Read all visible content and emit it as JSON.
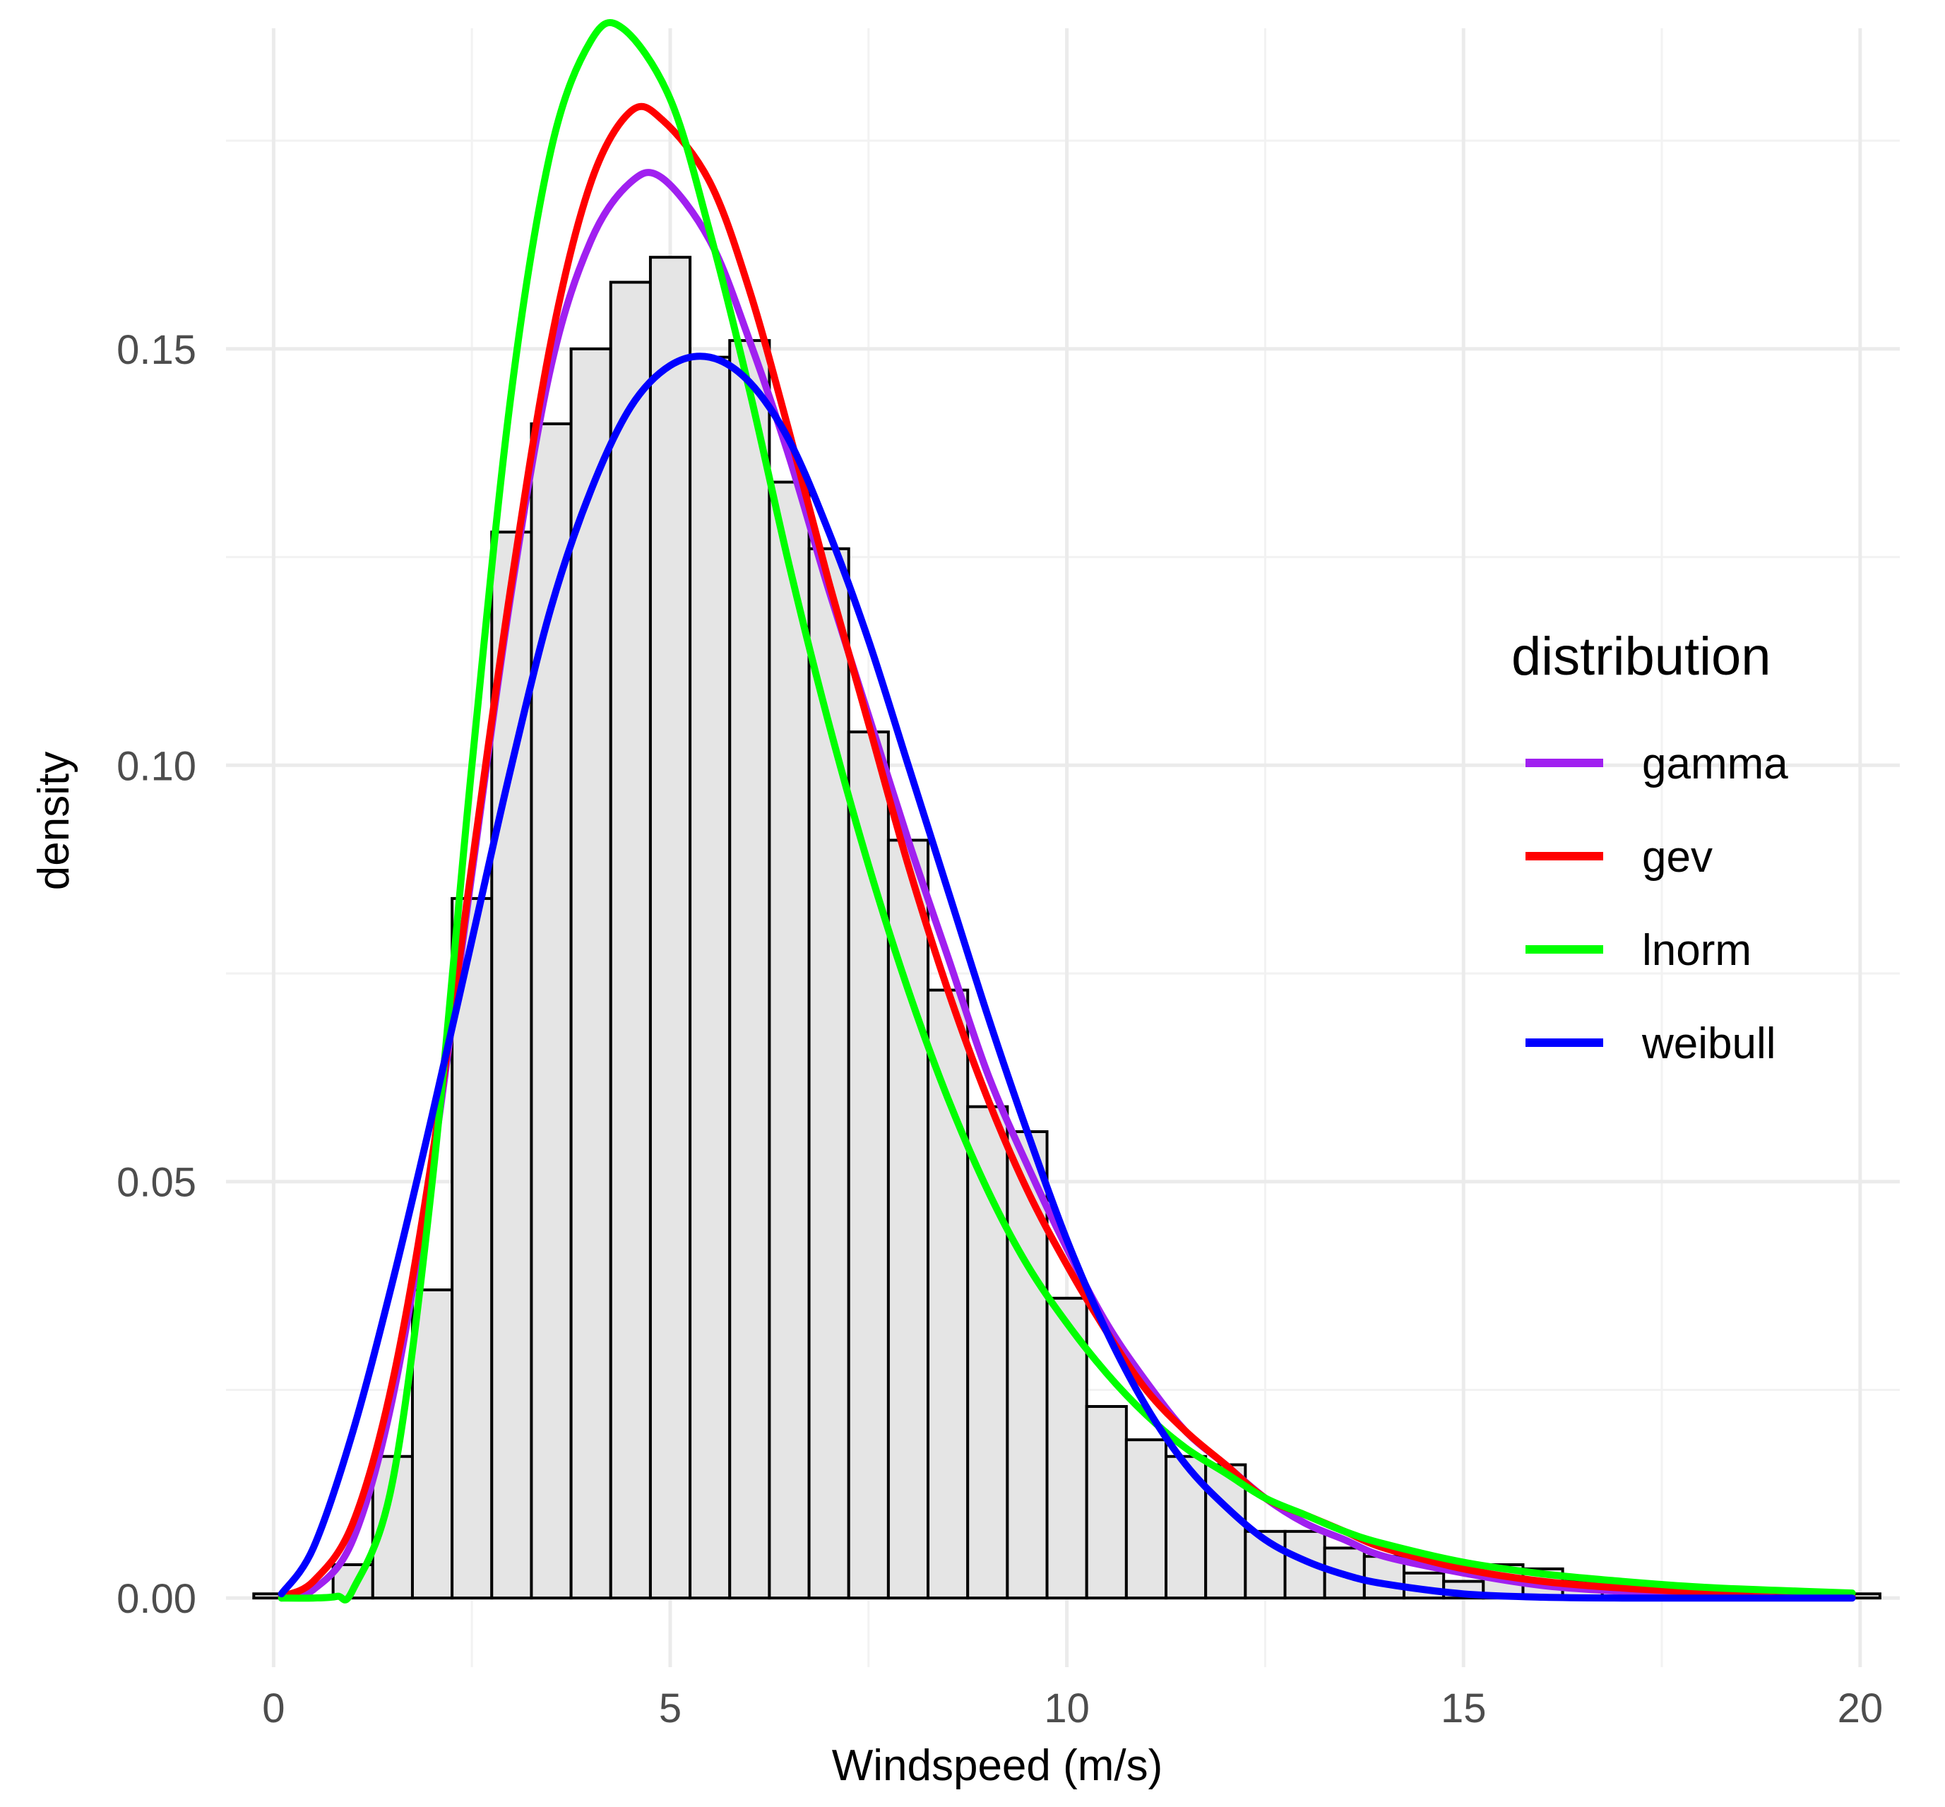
{
  "chart_data": {
    "type": "histogram",
    "xlabel": "Windspeed (m/s)",
    "ylabel": "density",
    "xlim": [
      -0.6,
      20.5
    ],
    "ylim": [
      -0.0083,
      0.1885
    ],
    "x_ticks": [
      0,
      5,
      10,
      15,
      20
    ],
    "x_tick_labels": [
      "0",
      "5",
      "10",
      "15",
      "20"
    ],
    "y_ticks": [
      0.0,
      0.05,
      0.1,
      0.15
    ],
    "y_tick_labels": [
      "0.00",
      "0.05",
      "0.10",
      "0.15"
    ],
    "grid": true,
    "legend": {
      "title": "distribution",
      "position": "right",
      "items": [
        {
          "label": "gamma",
          "color": "#a020f0"
        },
        {
          "label": "gev",
          "color": "#ff0000"
        },
        {
          "label": "lnorm",
          "color": "#00ff00"
        },
        {
          "label": "weibull",
          "color": "#0000ff"
        }
      ]
    },
    "histogram": {
      "bin_width": 0.5,
      "fill": "#e5e5e5",
      "stroke": "#000000",
      "bins": [
        {
          "x0": -0.25,
          "x1": 0.25,
          "density": 0.0005
        },
        {
          "x0": 0.25,
          "x1": 0.75,
          "density": 0.0
        },
        {
          "x0": 0.75,
          "x1": 1.25,
          "density": 0.004
        },
        {
          "x0": 1.25,
          "x1": 1.75,
          "density": 0.017
        },
        {
          "x0": 1.75,
          "x1": 2.25,
          "density": 0.037
        },
        {
          "x0": 2.25,
          "x1": 2.75,
          "density": 0.084
        },
        {
          "x0": 2.75,
          "x1": 3.25,
          "density": 0.128
        },
        {
          "x0": 3.25,
          "x1": 3.75,
          "density": 0.141
        },
        {
          "x0": 3.75,
          "x1": 4.25,
          "density": 0.15
        },
        {
          "x0": 4.25,
          "x1": 4.75,
          "density": 0.158
        },
        {
          "x0": 4.75,
          "x1": 5.25,
          "density": 0.161
        },
        {
          "x0": 5.25,
          "x1": 5.75,
          "density": 0.149
        },
        {
          "x0": 5.75,
          "x1": 6.25,
          "density": 0.151
        },
        {
          "x0": 6.25,
          "x1": 6.75,
          "density": 0.134
        },
        {
          "x0": 6.75,
          "x1": 7.25,
          "density": 0.126
        },
        {
          "x0": 7.25,
          "x1": 7.75,
          "density": 0.104
        },
        {
          "x0": 7.75,
          "x1": 8.25,
          "density": 0.091
        },
        {
          "x0": 8.25,
          "x1": 8.75,
          "density": 0.073
        },
        {
          "x0": 8.75,
          "x1": 9.25,
          "density": 0.059
        },
        {
          "x0": 9.25,
          "x1": 9.75,
          "density": 0.056
        },
        {
          "x0": 9.75,
          "x1": 10.25,
          "density": 0.036
        },
        {
          "x0": 10.25,
          "x1": 10.75,
          "density": 0.023
        },
        {
          "x0": 10.75,
          "x1": 11.25,
          "density": 0.019
        },
        {
          "x0": 11.25,
          "x1": 11.75,
          "density": 0.017
        },
        {
          "x0": 11.75,
          "x1": 12.25,
          "density": 0.016
        },
        {
          "x0": 12.25,
          "x1": 12.75,
          "density": 0.008
        },
        {
          "x0": 12.75,
          "x1": 13.25,
          "density": 0.008
        },
        {
          "x0": 13.25,
          "x1": 13.75,
          "density": 0.006
        },
        {
          "x0": 13.75,
          "x1": 14.25,
          "density": 0.005
        },
        {
          "x0": 14.25,
          "x1": 14.75,
          "density": 0.003
        },
        {
          "x0": 14.75,
          "x1": 15.25,
          "density": 0.002
        },
        {
          "x0": 15.25,
          "x1": 15.75,
          "density": 0.004
        },
        {
          "x0": 15.75,
          "x1": 16.25,
          "density": 0.0035
        },
        {
          "x0": 16.25,
          "x1": 16.75,
          "density": 0.002
        },
        {
          "x0": 16.75,
          "x1": 17.25,
          "density": 0.0015
        },
        {
          "x0": 17.25,
          "x1": 17.75,
          "density": 0.001
        },
        {
          "x0": 17.75,
          "x1": 18.25,
          "density": 0.001
        },
        {
          "x0": 18.25,
          "x1": 18.75,
          "density": 0.0005
        },
        {
          "x0": 18.75,
          "x1": 19.25,
          "density": 0.0005
        },
        {
          "x0": 19.25,
          "x1": 19.75,
          "density": 0.0005
        },
        {
          "x0": 19.75,
          "x1": 20.25,
          "density": 0.0005
        }
      ]
    },
    "series": [
      {
        "name": "gamma",
        "color": "#a020f0",
        "points": [
          [
            0.1,
            0.0
          ],
          [
            0.5,
            0.001
          ],
          [
            1.0,
            0.007
          ],
          [
            1.5,
            0.024
          ],
          [
            2.0,
            0.052
          ],
          [
            2.5,
            0.087
          ],
          [
            3.0,
            0.121
          ],
          [
            3.5,
            0.148
          ],
          [
            4.0,
            0.163
          ],
          [
            4.5,
            0.17
          ],
          [
            4.9,
            0.1705
          ],
          [
            5.5,
            0.163
          ],
          [
            6.0,
            0.151
          ],
          [
            6.5,
            0.137
          ],
          [
            7.0,
            0.121
          ],
          [
            7.5,
            0.106
          ],
          [
            8.0,
            0.091
          ],
          [
            8.5,
            0.077
          ],
          [
            9.0,
            0.063
          ],
          [
            9.5,
            0.052
          ],
          [
            10.0,
            0.042
          ],
          [
            10.5,
            0.033
          ],
          [
            11.0,
            0.026
          ],
          [
            11.5,
            0.02
          ],
          [
            12.0,
            0.016
          ],
          [
            12.5,
            0.012
          ],
          [
            13.0,
            0.009
          ],
          [
            13.5,
            0.007
          ],
          [
            14.0,
            0.005
          ],
          [
            15.0,
            0.003
          ],
          [
            16.0,
            0.0015
          ],
          [
            17.0,
            0.0008
          ],
          [
            18.0,
            0.0004
          ],
          [
            19.0,
            0.0002
          ],
          [
            19.9,
            0.0001
          ]
        ]
      },
      {
        "name": "gev",
        "color": "#ff0000",
        "points": [
          [
            0.1,
            0.0002
          ],
          [
            0.5,
            0.002
          ],
          [
            1.0,
            0.009
          ],
          [
            1.5,
            0.026
          ],
          [
            2.0,
            0.053
          ],
          [
            2.5,
            0.088
          ],
          [
            3.0,
            0.122
          ],
          [
            3.5,
            0.151
          ],
          [
            4.0,
            0.17
          ],
          [
            4.5,
            0.1785
          ],
          [
            4.9,
            0.1775
          ],
          [
            5.5,
            0.17
          ],
          [
            6.0,
            0.157
          ],
          [
            6.5,
            0.14
          ],
          [
            7.0,
            0.122
          ],
          [
            7.5,
            0.105
          ],
          [
            8.0,
            0.088
          ],
          [
            8.5,
            0.073
          ],
          [
            9.0,
            0.06
          ],
          [
            9.5,
            0.049
          ],
          [
            10.0,
            0.04
          ],
          [
            10.5,
            0.032
          ],
          [
            11.0,
            0.025
          ],
          [
            11.5,
            0.02
          ],
          [
            12.0,
            0.016
          ],
          [
            12.5,
            0.012
          ],
          [
            13.0,
            0.01
          ],
          [
            13.5,
            0.008
          ],
          [
            14.0,
            0.006
          ],
          [
            15.0,
            0.0035
          ],
          [
            16.0,
            0.002
          ],
          [
            17.0,
            0.0012
          ],
          [
            18.0,
            0.0007
          ],
          [
            19.0,
            0.0004
          ],
          [
            19.9,
            0.0002
          ]
        ]
      },
      {
        "name": "lnorm",
        "color": "#00ff00",
        "points": [
          [
            0.1,
            0.0
          ],
          [
            0.5,
            0.0
          ],
          [
            0.8,
            0.0002
          ],
          [
            1.0,
            0.001
          ],
          [
            1.5,
            0.014
          ],
          [
            2.0,
            0.05
          ],
          [
            2.5,
            0.1
          ],
          [
            3.0,
            0.145
          ],
          [
            3.5,
            0.174
          ],
          [
            4.0,
            0.187
          ],
          [
            4.4,
            0.1885
          ],
          [
            5.0,
            0.18
          ],
          [
            5.5,
            0.164
          ],
          [
            6.0,
            0.145
          ],
          [
            6.5,
            0.124
          ],
          [
            7.0,
            0.105
          ],
          [
            7.5,
            0.088
          ],
          [
            8.0,
            0.073
          ],
          [
            8.5,
            0.06
          ],
          [
            9.0,
            0.049
          ],
          [
            9.5,
            0.04
          ],
          [
            10.0,
            0.033
          ],
          [
            10.5,
            0.027
          ],
          [
            11.0,
            0.022
          ],
          [
            11.5,
            0.018
          ],
          [
            12.0,
            0.015
          ],
          [
            12.5,
            0.012
          ],
          [
            13.0,
            0.01
          ],
          [
            13.5,
            0.008
          ],
          [
            14.0,
            0.0065
          ],
          [
            15.0,
            0.0043
          ],
          [
            16.0,
            0.0029
          ],
          [
            17.0,
            0.002
          ],
          [
            18.0,
            0.0013
          ],
          [
            19.0,
            0.0009
          ],
          [
            19.9,
            0.0006
          ]
        ]
      },
      {
        "name": "weibull",
        "color": "#0000ff",
        "points": [
          [
            0.1,
            0.0005
          ],
          [
            0.5,
            0.006
          ],
          [
            1.0,
            0.02
          ],
          [
            1.5,
            0.038
          ],
          [
            2.0,
            0.058
          ],
          [
            2.5,
            0.079
          ],
          [
            3.0,
            0.1
          ],
          [
            3.5,
            0.119
          ],
          [
            4.0,
            0.133
          ],
          [
            4.5,
            0.143
          ],
          [
            5.0,
            0.148
          ],
          [
            5.5,
            0.149
          ],
          [
            6.0,
            0.146
          ],
          [
            6.5,
            0.139
          ],
          [
            7.0,
            0.128
          ],
          [
            7.5,
            0.115
          ],
          [
            8.0,
            0.1
          ],
          [
            8.5,
            0.085
          ],
          [
            9.0,
            0.07
          ],
          [
            9.5,
            0.056
          ],
          [
            10.0,
            0.043
          ],
          [
            10.5,
            0.032
          ],
          [
            11.0,
            0.023
          ],
          [
            11.5,
            0.016
          ],
          [
            12.0,
            0.011
          ],
          [
            12.5,
            0.007
          ],
          [
            13.0,
            0.0045
          ],
          [
            13.5,
            0.0028
          ],
          [
            14.0,
            0.0017
          ],
          [
            15.0,
            0.0005
          ],
          [
            16.0,
            0.0001
          ],
          [
            17.0,
            0.0
          ],
          [
            18.0,
            0.0
          ],
          [
            19.9,
            0.0
          ]
        ]
      }
    ]
  }
}
